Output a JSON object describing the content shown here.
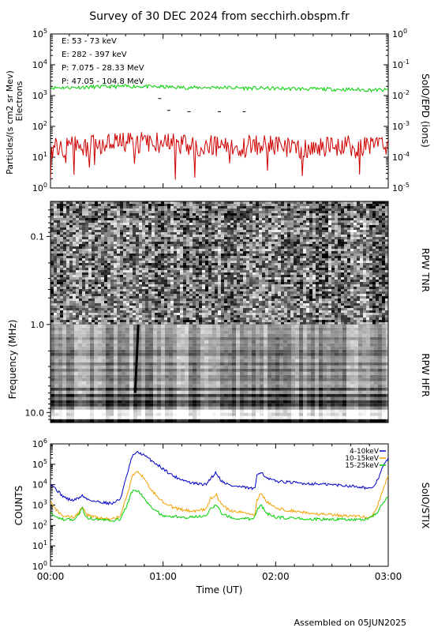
{
  "title": "Survey of 30 DEC 2024 from secchirh.obspm.fr",
  "footer": "Assembled on 05JUN2025",
  "colors": {
    "green": "#00d000",
    "red": "#d00000",
    "black": "#000000",
    "blue": "#0000c8",
    "orange": "#f0a000"
  },
  "chart_data": [
    {
      "type": "line",
      "panel": "SoIO/EPD particles",
      "ylabel": "Particles/(s cm2 sr Mev)",
      "ylabel2": "Electrons",
      "right_label": "SoIO/EPD (ions)",
      "yscale": "log",
      "ylim": [
        1,
        100000
      ],
      "yticks": [
        "10^0",
        "10^1",
        "10^2",
        "10^3",
        "10^4",
        "10^5"
      ],
      "y2lim": [
        1e-05,
        1
      ],
      "y2ticks": [
        "10^-5",
        "10^-4",
        "10^-3",
        "10^-2",
        "10^-1",
        "10^0"
      ],
      "xlim": [
        0,
        3
      ],
      "x_units": "hours UT",
      "series": [
        {
          "name": "E: 53 - 73 keV",
          "color": "#00d000",
          "x": [
            0.0,
            0.25,
            0.5,
            0.75,
            1.0,
            1.25,
            1.5,
            1.75,
            2.0,
            2.25,
            2.5,
            2.75,
            3.0
          ],
          "values": [
            1800,
            1850,
            1950,
            2000,
            1900,
            1800,
            1850,
            1750,
            1700,
            1650,
            1600,
            1550,
            1500
          ]
        },
        {
          "name": "E: 282 - 397 keV",
          "color": "#d00000",
          "x": [
            0.0,
            0.25,
            0.5,
            0.75,
            1.0,
            1.25,
            1.5,
            1.75,
            2.0,
            2.25,
            2.5,
            2.75,
            3.0
          ],
          "values": [
            20,
            22,
            25,
            30,
            28,
            25,
            22,
            24,
            22,
            20,
            22,
            23,
            20
          ]
        },
        {
          "name": "P: 7.075 - 28.33 MeV",
          "color": "#000000",
          "axis": "right",
          "x": [
            0.97,
            1.05,
            1.23,
            1.5,
            1.72
          ],
          "values": [
            0.008,
            0.0033,
            0.003,
            0.003,
            0.003
          ]
        },
        {
          "name": "P: 47.05 - 104.8 MeV",
          "color": "#0000c8",
          "axis": "right",
          "x": [],
          "values": []
        }
      ]
    },
    {
      "type": "heatmap",
      "panel": "RPW spectrogram",
      "ylabel": "Frequency (MHz)",
      "yscale": "log",
      "yticks": [
        "0.1",
        "1.0",
        "10.0"
      ],
      "ylim_top_to_bottom": [
        0.04,
        13.0
      ],
      "sections": [
        {
          "name": "RPW TNR",
          "range": [
            0.04,
            1.0
          ]
        },
        {
          "name": "RPW HFR",
          "range": [
            1.0,
            13.0
          ]
        }
      ],
      "xlim": [
        0,
        3
      ]
    },
    {
      "type": "line",
      "panel": "SoIO/STIX",
      "ylabel": "COUNTS",
      "right_label": "SoIO/STIX",
      "yscale": "log",
      "ylim": [
        1,
        1000000
      ],
      "yticks": [
        "10^0",
        "10^1",
        "10^2",
        "10^3",
        "10^4",
        "10^5",
        "10^6"
      ],
      "xlim": [
        0,
        3
      ],
      "xticks": [
        "00:00",
        "01:00",
        "02:00",
        "03:00"
      ],
      "xlabel": "Time (UT)",
      "series": [
        {
          "name": "4-10keV",
          "color": "#0000c8",
          "x": [
            0.0,
            0.05,
            0.1,
            0.15,
            0.2,
            0.25,
            0.28,
            0.32,
            0.4,
            0.55,
            0.62,
            0.68,
            0.72,
            0.75,
            0.78,
            0.82,
            0.9,
            1.0,
            1.1,
            1.25,
            1.38,
            1.42,
            1.47,
            1.52,
            1.6,
            1.75,
            1.82,
            1.83,
            1.87,
            1.92,
            2.0,
            2.2,
            2.5,
            2.75,
            2.85,
            2.9,
            2.95,
            3.0
          ],
          "values": [
            12000,
            6000,
            3000,
            2000,
            1700,
            2200,
            3000,
            2000,
            1500,
            1200,
            2000,
            30000,
            200000,
            350000,
            380000,
            300000,
            150000,
            60000,
            25000,
            12000,
            10000,
            20000,
            40000,
            15000,
            9000,
            7000,
            6000,
            30000,
            45000,
            20000,
            15000,
            12000,
            10000,
            8000,
            6000,
            15000,
            70000,
            200000
          ]
        },
        {
          "name": "10-15keV",
          "color": "#f0a000",
          "x": [
            0.0,
            0.05,
            0.1,
            0.2,
            0.25,
            0.28,
            0.32,
            0.4,
            0.55,
            0.62,
            0.68,
            0.72,
            0.75,
            0.78,
            0.82,
            0.9,
            1.0,
            1.1,
            1.25,
            1.38,
            1.42,
            1.47,
            1.52,
            1.6,
            1.75,
            1.82,
            1.83,
            1.87,
            1.92,
            2.0,
            2.3,
            2.6,
            2.85,
            2.9,
            2.95,
            3.0
          ],
          "values": [
            1500,
            600,
            300,
            250,
            400,
            900,
            350,
            250,
            200,
            300,
            3000,
            20000,
            40000,
            45000,
            25000,
            5000,
            1500,
            700,
            500,
            600,
            2000,
            3500,
            1000,
            500,
            400,
            350,
            1500,
            4000,
            1500,
            700,
            400,
            300,
            250,
            800,
            5000,
            30000
          ]
        },
        {
          "name": "15-25keV",
          "color": "#00d000",
          "x": [
            0.0,
            0.05,
            0.1,
            0.2,
            0.25,
            0.28,
            0.32,
            0.4,
            0.55,
            0.62,
            0.68,
            0.72,
            0.75,
            0.78,
            0.82,
            0.9,
            1.0,
            1.2,
            1.38,
            1.42,
            1.47,
            1.52,
            1.6,
            1.8,
            1.83,
            1.87,
            1.92,
            2.0,
            2.4,
            2.8,
            2.9,
            2.95,
            3.0
          ],
          "values": [
            500,
            250,
            200,
            200,
            300,
            700,
            250,
            200,
            180,
            200,
            1000,
            4000,
            5500,
            5000,
            2500,
            700,
            300,
            250,
            300,
            700,
            1000,
            400,
            250,
            200,
            500,
            1000,
            400,
            250,
            200,
            200,
            400,
            1200,
            2500
          ]
        }
      ]
    }
  ]
}
